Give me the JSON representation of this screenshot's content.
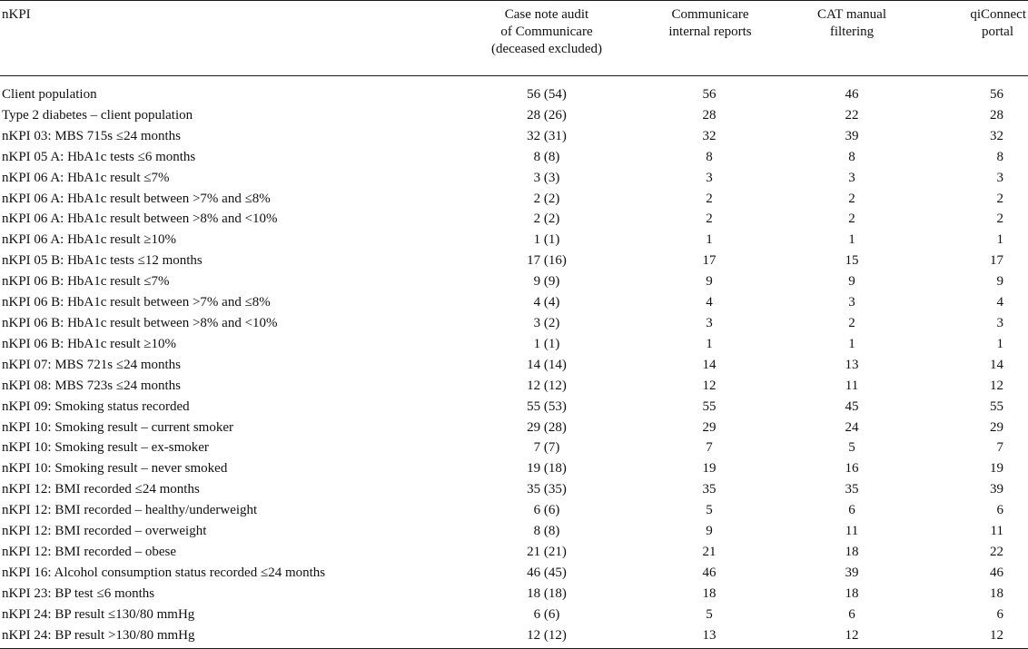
{
  "columns": {
    "name": "nKPI",
    "audit": [
      "Case note audit",
      "of Communicare",
      "(deceased excluded)"
    ],
    "communicare": [
      "Communicare",
      "internal reports"
    ],
    "cat": [
      "CAT manual",
      "filtering"
    ],
    "qiconnect": [
      "qiConnect",
      "portal"
    ]
  },
  "rows": [
    {
      "name": "Client population",
      "audit": "56 (54)",
      "communicare": "56",
      "cat": "46",
      "qiconnect": "56"
    },
    {
      "name": "Type 2 diabetes – client population",
      "audit": "28 (26)",
      "communicare": "28",
      "cat": "22",
      "qiconnect": "28"
    },
    {
      "name": "nKPI 03: MBS 715s ≤24 months",
      "audit": "32 (31)",
      "communicare": "32",
      "cat": "39",
      "qiconnect": "32"
    },
    {
      "name": "nKPI 05 A: HbA1c tests ≤6 months",
      "audit": "8 (8)",
      "communicare": "8",
      "cat": "8",
      "qiconnect": "8"
    },
    {
      "name": "nKPI 06 A: HbA1c result ≤7%",
      "audit": "3 (3)",
      "communicare": "3",
      "cat": "3",
      "qiconnect": "3"
    },
    {
      "name": "nKPI 06 A: HbA1c result between >7% and ≤8%",
      "audit": "2 (2)",
      "communicare": "2",
      "cat": "2",
      "qiconnect": "2"
    },
    {
      "name": "nKPI 06 A: HbA1c result between >8% and <10%",
      "audit": "2 (2)",
      "communicare": "2",
      "cat": "2",
      "qiconnect": "2"
    },
    {
      "name": "nKPI 06 A: HbA1c result ≥10%",
      "audit": "1 (1)",
      "communicare": "1",
      "cat": "1",
      "qiconnect": "1"
    },
    {
      "name": "nKPI 05 B: HbA1c tests ≤12 months",
      "audit": "17 (16)",
      "communicare": "17",
      "cat": "15",
      "qiconnect": "17"
    },
    {
      "name": "nKPI 06 B: HbA1c result ≤7%",
      "audit": "9 (9)",
      "communicare": "9",
      "cat": "9",
      "qiconnect": "9"
    },
    {
      "name": "nKPI 06 B: HbA1c result between >7% and ≤8%",
      "audit": "4 (4)",
      "communicare": "4",
      "cat": "3",
      "qiconnect": "4"
    },
    {
      "name": "nKPI 06 B: HbA1c result between >8% and <10%",
      "audit": "3 (2)",
      "communicare": "3",
      "cat": "2",
      "qiconnect": "3"
    },
    {
      "name": "nKPI 06 B: HbA1c result ≥10%",
      "audit": "1 (1)",
      "communicare": "1",
      "cat": "1",
      "qiconnect": "1"
    },
    {
      "name": "nKPI 07: MBS 721s ≤24 months",
      "audit": "14 (14)",
      "communicare": "14",
      "cat": "13",
      "qiconnect": "14"
    },
    {
      "name": "nKPI 08: MBS 723s ≤24 months",
      "audit": "12 (12)",
      "communicare": "12",
      "cat": "11",
      "qiconnect": "12"
    },
    {
      "name": "nKPI 09: Smoking status recorded",
      "audit": "55 (53)",
      "communicare": "55",
      "cat": "45",
      "qiconnect": "55"
    },
    {
      "name": "nKPI 10: Smoking result – current smoker",
      "audit": "29 (28)",
      "communicare": "29",
      "cat": "24",
      "qiconnect": "29"
    },
    {
      "name": "nKPI 10: Smoking result – ex-smoker",
      "audit": "7 (7)",
      "communicare": "7",
      "cat": "5",
      "qiconnect": "7"
    },
    {
      "name": "nKPI 10: Smoking result – never smoked",
      "audit": "19 (18)",
      "communicare": "19",
      "cat": "16",
      "qiconnect": "19"
    },
    {
      "name": "nKPI 12: BMI recorded ≤24 months",
      "audit": "35 (35)",
      "communicare": "35",
      "cat": "35",
      "qiconnect": "39"
    },
    {
      "name": "nKPI 12: BMI recorded – healthy/underweight",
      "audit": "6 (6)",
      "communicare": "5",
      "cat": "6",
      "qiconnect": "6"
    },
    {
      "name": "nKPI 12: BMI recorded – overweight",
      "audit": "8 (8)",
      "communicare": "9",
      "cat": "11",
      "qiconnect": "11"
    },
    {
      "name": "nKPI 12: BMI recorded – obese",
      "audit": "21 (21)",
      "communicare": "21",
      "cat": "18",
      "qiconnect": "22"
    },
    {
      "name": "nKPI 16: Alcohol consumption status recorded ≤24 months",
      "audit": "46 (45)",
      "communicare": "46",
      "cat": "39",
      "qiconnect": "46"
    },
    {
      "name": "nKPI 23: BP test ≤6 months",
      "audit": "18 (18)",
      "communicare": "18",
      "cat": "18",
      "qiconnect": "18"
    },
    {
      "name": "nKPI 24: BP result ≤130/80 mmHg",
      "audit": "6 (6)",
      "communicare": "5",
      "cat": "6",
      "qiconnect": "6"
    },
    {
      "name": "nKPI 24: BP result >130/80 mmHg",
      "audit": "12 (12)",
      "communicare": "13",
      "cat": "12",
      "qiconnect": "12"
    }
  ]
}
